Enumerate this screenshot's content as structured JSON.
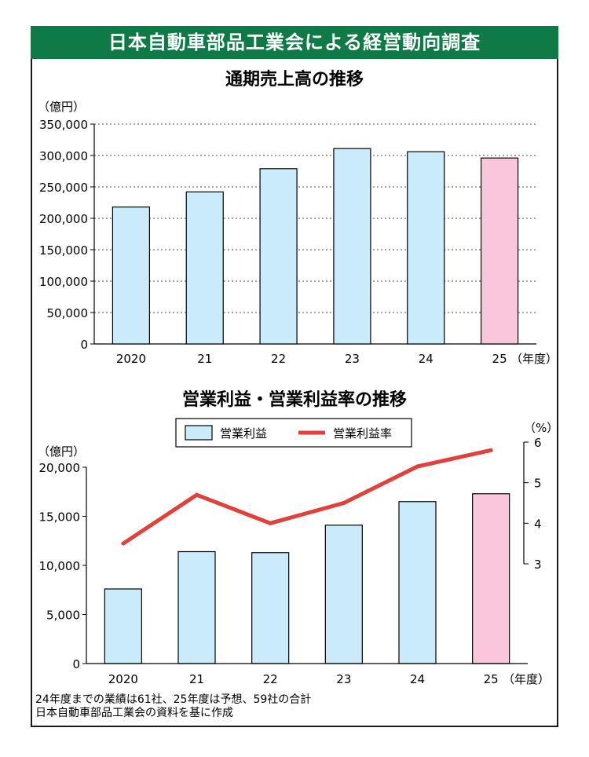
{
  "title": "日本自動車部品工業会による経営動向調査",
  "footnotes": [
    "24年度までの業績は61社、25年度は予想、59社の合計",
    "日本自動車部品工業会の資料を基に作成"
  ],
  "colors": {
    "banner": "#0f7a46",
    "bar_actual": "#c9ebfa",
    "bar_forecast": "#f9c6db",
    "line": "#e0413b"
  },
  "chart_data": [
    {
      "type": "bar",
      "title": "通期売上高の推移",
      "ylabel": "（億円）",
      "xlabel": "（年度）",
      "categories": [
        "2020",
        "21",
        "22",
        "23",
        "24",
        "25"
      ],
      "ylim": [
        0,
        350000
      ],
      "yticks": [
        0,
        50000,
        100000,
        150000,
        200000,
        250000,
        300000,
        350000
      ],
      "ytick_labels": [
        "0",
        "50,000",
        "100,000",
        "150,000",
        "200,000",
        "250,000",
        "300,000",
        "350,000"
      ],
      "values": [
        218000,
        242000,
        279000,
        311000,
        306000,
        296000
      ],
      "forecast_index": 5,
      "grid": true
    },
    {
      "type": "bar",
      "title": "営業利益・営業利益率の推移",
      "ylabel": "（億円）",
      "y2label": "（%）",
      "xlabel": "（年度）",
      "categories": [
        "2020",
        "21",
        "22",
        "23",
        "24",
        "25"
      ],
      "ylim": [
        0,
        20000
      ],
      "yticks": [
        0,
        5000,
        10000,
        15000,
        20000
      ],
      "ytick_labels": [
        "0",
        "5,000",
        "10,000",
        "15,000",
        "20,000"
      ],
      "y2lim": [
        3,
        6
      ],
      "y2ticks": [
        3,
        4,
        5,
        6
      ],
      "y2tick_labels": [
        "3",
        "4",
        "5",
        "6"
      ],
      "series": [
        {
          "name": "営業利益",
          "type": "bar",
          "values": [
            7600,
            11400,
            11300,
            14100,
            16500,
            17300
          ]
        },
        {
          "name": "営業利益率",
          "type": "line",
          "axis": "right",
          "values": [
            3.5,
            4.7,
            4.0,
            4.5,
            5.4,
            5.8
          ]
        }
      ],
      "forecast_index": 5,
      "legend": "top-center",
      "grid": false
    }
  ]
}
